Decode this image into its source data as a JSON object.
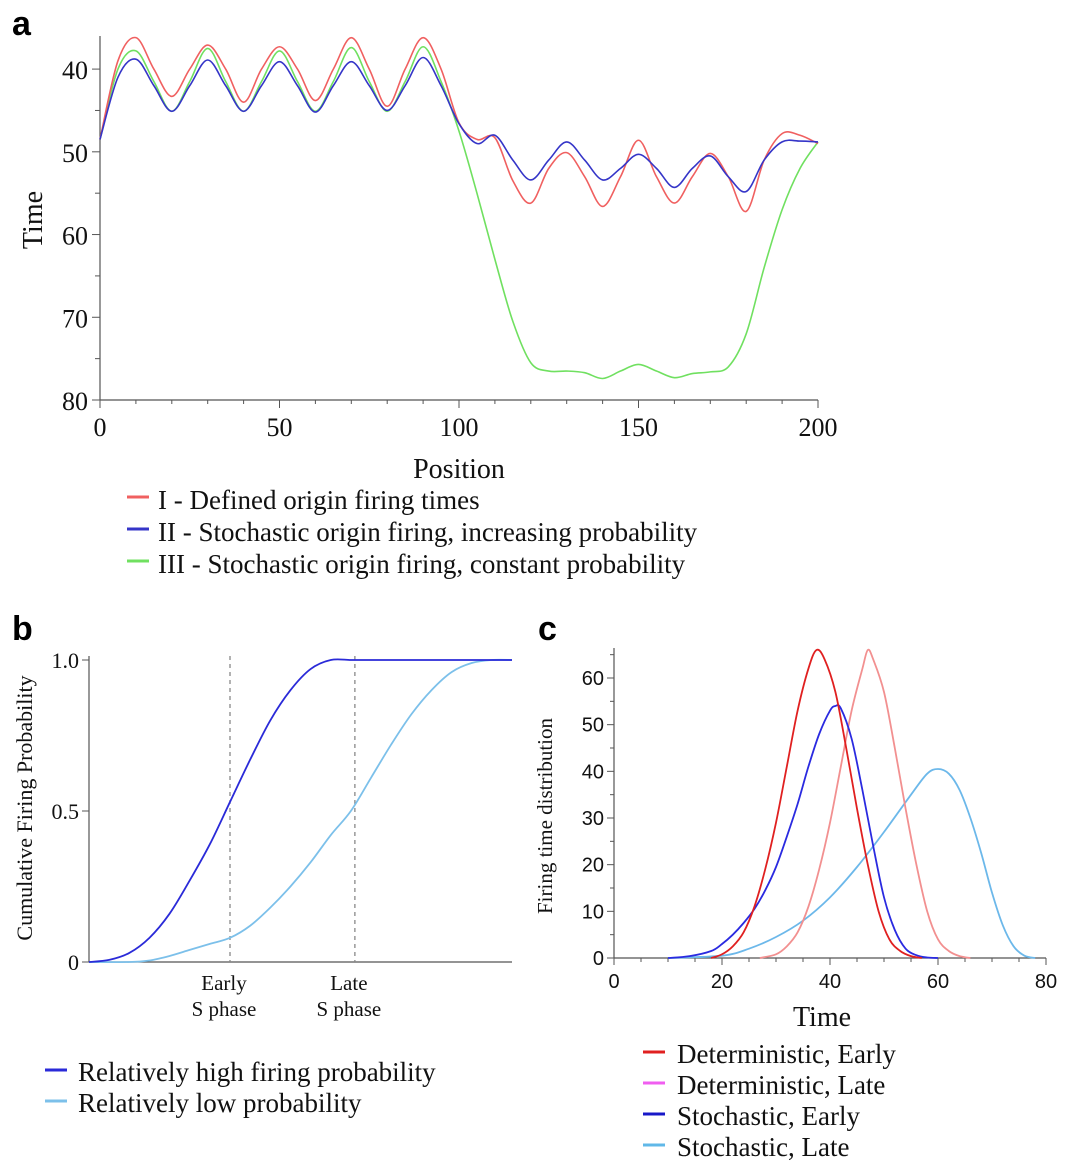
{
  "chart_data": [
    {
      "panel": "a",
      "type": "line",
      "xlabel": "Position",
      "ylabel": "Time",
      "xlim": [
        0,
        200
      ],
      "ylim": [
        80,
        36
      ],
      "y_inverted": true,
      "xticks": [
        0,
        50,
        100,
        150,
        200
      ],
      "yticks": [
        40,
        50,
        60,
        70,
        80
      ],
      "legend_position": "bottom",
      "series": [
        {
          "name": "I - Defined origin firing times",
          "color": "#f06060",
          "x": [
            0,
            5,
            10,
            15,
            20,
            25,
            30,
            35,
            40,
            45,
            50,
            55,
            60,
            65,
            70,
            75,
            80,
            85,
            90,
            95,
            100,
            105,
            110,
            115,
            120,
            125,
            130,
            135,
            140,
            145,
            150,
            155,
            160,
            165,
            170,
            175,
            180,
            185,
            190,
            195,
            200
          ],
          "y": [
            48.5,
            39,
            36.2,
            40,
            43.3,
            40,
            37.1,
            40,
            44,
            40,
            37.3,
            40,
            43.8,
            40,
            36.2,
            40,
            44.5,
            40,
            36.2,
            40,
            46.5,
            48.5,
            48.3,
            53.5,
            56.2,
            52,
            50.1,
            53,
            56.6,
            53,
            48.6,
            53,
            56.2,
            53,
            50.2,
            53,
            57.2,
            51,
            47.8,
            48,
            49
          ]
        },
        {
          "name": "II - Stochastic origin firing, increasing probability",
          "color": "#3535c8",
          "x": [
            0,
            5,
            10,
            15,
            20,
            25,
            30,
            35,
            40,
            45,
            50,
            55,
            60,
            65,
            70,
            75,
            80,
            85,
            90,
            95,
            100,
            105,
            110,
            115,
            120,
            125,
            130,
            135,
            140,
            145,
            150,
            155,
            160,
            165,
            170,
            175,
            180,
            185,
            190,
            195,
            200
          ],
          "y": [
            48.5,
            41,
            38.8,
            42,
            45.1,
            42,
            38.9,
            42,
            45.1,
            42,
            39.1,
            42,
            45.2,
            42,
            39.1,
            42,
            45,
            42,
            38.6,
            42,
            46.6,
            49,
            48,
            51,
            53.4,
            51,
            48.8,
            51,
            53.4,
            52,
            50.3,
            52,
            54.3,
            52,
            50.5,
            53,
            54.8,
            51,
            48.8,
            48.7,
            48.8
          ]
        },
        {
          "name": "III - Stochastic origin firing, constant probability",
          "color": "#70e060",
          "x": [
            0,
            5,
            10,
            15,
            20,
            25,
            30,
            35,
            40,
            45,
            50,
            55,
            60,
            65,
            70,
            75,
            80,
            85,
            90,
            95,
            100,
            105,
            110,
            115,
            120,
            125,
            130,
            135,
            140,
            145,
            150,
            155,
            160,
            165,
            170,
            175,
            180,
            185,
            190,
            195,
            200
          ],
          "y": [
            48.5,
            40,
            37.8,
            41.5,
            45.1,
            41.5,
            37.5,
            41.5,
            45.1,
            41.5,
            37.8,
            41.5,
            45.1,
            41.5,
            37.4,
            41.5,
            45.1,
            41.5,
            37.3,
            41.5,
            47.5,
            55,
            63,
            70.5,
            75.5,
            76.5,
            76.5,
            76.7,
            77.4,
            76.5,
            75.7,
            76.5,
            77.3,
            76.8,
            76.6,
            76,
            72,
            64,
            57,
            52,
            48.8
          ]
        }
      ]
    },
    {
      "panel": "b",
      "type": "line",
      "xlabel": "",
      "ylabel": "Cumulative Firing Probability",
      "ylim": [
        0,
        1
      ],
      "yticks": [
        "0",
        "0.5",
        "1.0"
      ],
      "x_markers": [
        {
          "label_line1": "Early",
          "label_line2": "S phase",
          "x": 0.35
        },
        {
          "label_line1": "Late",
          "label_line2": "S phase",
          "x": 0.66
        }
      ],
      "xlim": [
        0,
        1.05
      ],
      "legend_position": "bottom",
      "series": [
        {
          "name": "Relatively high firing probability",
          "color": "#2a2ad8",
          "x": [
            0,
            0.05,
            0.1,
            0.15,
            0.2,
            0.25,
            0.3,
            0.35,
            0.4,
            0.45,
            0.5,
            0.55,
            0.6,
            0.65,
            0.7,
            0.8,
            0.9,
            1.05
          ],
          "y": [
            0,
            0.007,
            0.03,
            0.08,
            0.16,
            0.27,
            0.39,
            0.53,
            0.67,
            0.8,
            0.9,
            0.97,
            1.0,
            1.0,
            1.0,
            1.0,
            1.0,
            1.0
          ]
        },
        {
          "name": "Relatively low  probability",
          "color": "#7cc0ea",
          "x": [
            0,
            0.1,
            0.15,
            0.2,
            0.25,
            0.3,
            0.35,
            0.4,
            0.45,
            0.5,
            0.55,
            0.6,
            0.65,
            0.7,
            0.75,
            0.8,
            0.85,
            0.9,
            0.95,
            1.0,
            1.05
          ],
          "y": [
            0,
            0.0,
            0.005,
            0.02,
            0.04,
            0.06,
            0.08,
            0.12,
            0.18,
            0.25,
            0.33,
            0.42,
            0.5,
            0.61,
            0.72,
            0.82,
            0.9,
            0.96,
            0.99,
            1.0,
            1.0
          ]
        }
      ]
    },
    {
      "panel": "c",
      "type": "line",
      "xlabel": "Time",
      "ylabel": "Firing time distribution",
      "xlim": [
        0,
        80
      ],
      "ylim": [
        0,
        66
      ],
      "xticks": [
        0,
        20,
        40,
        60,
        80
      ],
      "yticks": [
        0,
        10,
        20,
        30,
        40,
        50,
        60
      ],
      "legend_position": "bottom",
      "series": [
        {
          "name": "Deterministic, Early",
          "legend_color": "#e02020",
          "color": "#e02020",
          "x": [
            18,
            20,
            22,
            24,
            26,
            28,
            30,
            32,
            34,
            36,
            37.5,
            39,
            41,
            43,
            45,
            47,
            49,
            51,
            53,
            55,
            57
          ],
          "y": [
            0,
            0.8,
            2.5,
            5.5,
            11,
            19,
            29,
            41,
            53,
            62,
            66,
            64,
            57,
            45,
            32,
            20,
            10,
            4,
            1.5,
            0.4,
            0
          ]
        },
        {
          "name": "Deterministic, Late",
          "legend_color": "#f05ef0",
          "color": "#f29090",
          "x": [
            27,
            30,
            32,
            34,
            36,
            38,
            40,
            42,
            44,
            46,
            47,
            48,
            50,
            52,
            54,
            56,
            58,
            60,
            62,
            64,
            66
          ],
          "y": [
            0,
            0.8,
            2.5,
            5.5,
            11,
            19,
            29,
            41,
            53,
            62,
            66,
            64,
            57,
            45,
            32,
            20,
            10,
            4,
            1.5,
            0.4,
            0
          ]
        },
        {
          "name": "Stochastic, Early",
          "legend_color": "#1818c8",
          "color": "#2a2ae0",
          "x": [
            10,
            14,
            18,
            20,
            22,
            24,
            26,
            28,
            30,
            32,
            34,
            36,
            38,
            40,
            41,
            42,
            44,
            46,
            48,
            50,
            52,
            54,
            56,
            58,
            60
          ],
          "y": [
            0,
            0.4,
            1.5,
            3,
            5,
            7.5,
            10.5,
            14.5,
            19.5,
            26,
            33,
            41,
            48,
            53,
            54,
            53.5,
            47,
            36,
            24,
            13,
            6,
            2,
            0.6,
            0.1,
            0
          ]
        },
        {
          "name": "Stochastic, Late",
          "legend_color": "#60b8e8",
          "color": "#6cb8ea",
          "x": [
            10,
            20,
            25,
            30,
            35,
            40,
            45,
            50,
            55,
            58,
            60,
            62,
            64,
            66,
            68,
            70,
            72,
            74,
            76,
            78
          ],
          "y": [
            0,
            0.5,
            2,
            4.5,
            8,
            13,
            19.5,
            27,
            35,
            39.5,
            40.5,
            39.5,
            36,
            30,
            22.5,
            14,
            7,
            2.5,
            0.5,
            0
          ]
        }
      ]
    }
  ],
  "panel_labels": {
    "a": "a",
    "b": "b",
    "c": "c"
  }
}
